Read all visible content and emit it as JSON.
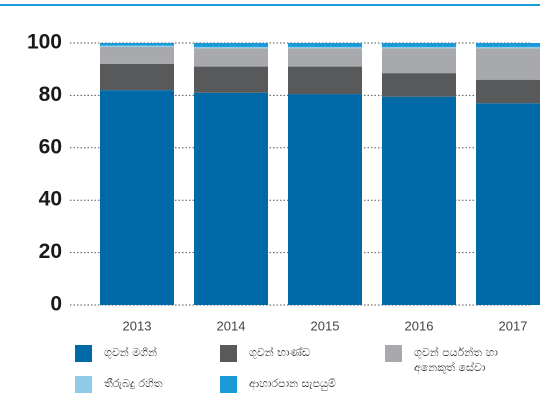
{
  "chart_data": {
    "type": "stacked_bar",
    "categories": [
      "2013",
      "2014",
      "2015",
      "2016",
      "2017"
    ],
    "series": [
      {
        "name": "ගුවන් මගීන්",
        "color": "#0069a8",
        "values": [
          82,
          81,
          80.5,
          79.5,
          77
        ]
      },
      {
        "name": "ගුවන් භාණ්ඩ",
        "color": "#58595b",
        "values": [
          10,
          10,
          10.5,
          9,
          9
        ]
      },
      {
        "name": "ගුවන් පර්යන්ත හා අනෙකුත් සේවා",
        "color": "#a7a9ac",
        "values": [
          6.5,
          7,
          7,
          9.5,
          12
        ]
      },
      {
        "name": "තීරුබදු රහිත",
        "color": "#8fcbe8",
        "values": [
          0.5,
          0.5,
          0.5,
          0.5,
          0.5
        ]
      },
      {
        "name": "ආහාරපාන සැපයුම්",
        "color": "#1a9bd7",
        "values": [
          1,
          1.5,
          1.5,
          1.5,
          1.5
        ]
      }
    ],
    "ylim": [
      0,
      100
    ],
    "yticks": [
      0,
      20,
      40,
      60,
      80,
      100
    ],
    "grid": true
  }
}
